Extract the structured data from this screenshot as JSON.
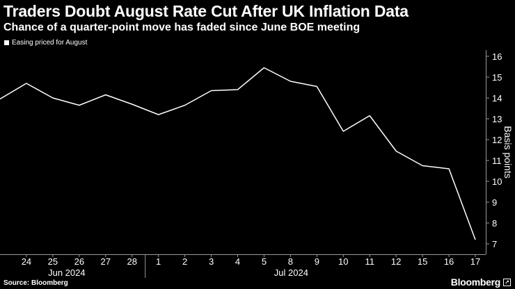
{
  "header": {
    "title": "Traders Doubt August Rate Cut After UK Inflation Data",
    "subtitle": "Chance of a quarter-point move has faded since June BOE meeting"
  },
  "footer": {
    "source": "Source: Bloomberg",
    "brand": "Bloomberg",
    "brand_icon": "arrow-box-icon"
  },
  "colors": {
    "background": "#000000",
    "line": "#ffffff",
    "text": "#ffffff"
  },
  "chart_data": {
    "type": "line",
    "title": "Traders Doubt August Rate Cut After UK Inflation Data",
    "subtitle": "Chance of a quarter-point move has faded since June BOE meeting",
    "ylabel": "Basis points",
    "y_axis_position": "right",
    "ylim": [
      6.5,
      16.3
    ],
    "yticks": [
      7,
      8,
      9,
      10,
      11,
      12,
      13,
      14,
      15,
      16
    ],
    "grid": false,
    "legend": "top-left",
    "x": [
      "2024-06-21",
      "2024-06-24",
      "2024-06-25",
      "2024-06-26",
      "2024-06-27",
      "2024-06-28",
      "2024-07-01",
      "2024-07-02",
      "2024-07-03",
      "2024-07-04",
      "2024-07-05",
      "2024-07-08",
      "2024-07-09",
      "2024-07-10",
      "2024-07-11",
      "2024-07-12",
      "2024-07-15",
      "2024-07-16",
      "2024-07-17"
    ],
    "xtick_labels": [
      "24",
      "25",
      "26",
      "27",
      "28",
      "1",
      "2",
      "3",
      "4",
      "5",
      "8",
      "9",
      "10",
      "11",
      "12",
      "15",
      "16",
      "17"
    ],
    "month_labels": [
      "Jun 2024",
      "Jul 2024"
    ],
    "series": [
      {
        "name": "Easing priced for August",
        "color": "#ffffff",
        "values": [
          13.95,
          14.7,
          14.0,
          13.65,
          14.15,
          13.7,
          13.2,
          13.65,
          14.35,
          14.4,
          15.45,
          14.8,
          14.55,
          12.4,
          13.15,
          11.45,
          10.75,
          10.6,
          7.2
        ]
      }
    ]
  }
}
